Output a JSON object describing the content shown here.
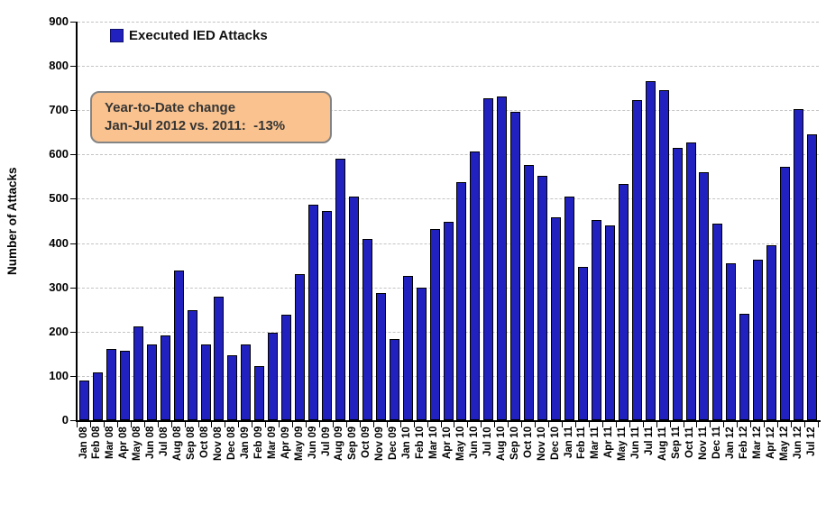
{
  "chart_data": {
    "type": "bar",
    "title": "",
    "xlabel": "",
    "ylabel": "Number of Attacks",
    "ylim": [
      0,
      900
    ],
    "ytick_interval": 100,
    "grid": true,
    "legend_position": "top-left",
    "legend": {
      "label": "Executed IED Attacks",
      "color": "#2121c0"
    },
    "annotation": {
      "line1": "Year-to-Date change",
      "line2": "Jan-Jul 2012 vs. 2011:  -13%",
      "fill_color": "#f9c28e",
      "border_color": "#848484"
    },
    "bar_color": "#2121c0",
    "categories": [
      "Jan 08",
      "Feb 08",
      "Mar 08",
      "Apr 08",
      "May 08",
      "Jun 08",
      "Jul 08",
      "Aug 08",
      "Sep 08",
      "Oct 08",
      "Nov 08",
      "Dec 08",
      "Jan 09",
      "Feb 09",
      "Mar 09",
      "Apr 09",
      "May 09",
      "Jun 09",
      "Jul 09",
      "Aug 09",
      "Sep 09",
      "Oct 09",
      "Nov 09",
      "Dec 09",
      "Jan 10",
      "Feb 10",
      "Mar 10",
      "Apr 10",
      "May 10",
      "Jun 10",
      "Jul 10",
      "Aug 10",
      "Sep 10",
      "Oct 10",
      "Nov 10",
      "Dec 10",
      "Jan 11",
      "Feb 11",
      "Mar 11",
      "Apr 11",
      "May 11",
      "Jun 11",
      "Jul 11",
      "Aug 11",
      "Sep 11",
      "Oct 11",
      "Nov 11",
      "Dec 11",
      "Jan 12",
      "Feb 12",
      "Mar 12",
      "Apr 12",
      "May 12",
      "Jun 12",
      "Jul 12"
    ],
    "values": [
      90,
      107,
      160,
      157,
      211,
      172,
      192,
      337,
      249,
      172,
      278,
      147,
      172,
      123,
      198,
      239,
      330,
      487,
      473,
      590,
      505,
      410,
      288,
      183,
      325,
      300,
      432,
      448,
      537,
      606,
      726,
      731,
      696,
      577,
      552,
      458,
      505,
      347,
      452,
      440,
      533,
      722,
      766,
      745,
      615,
      628,
      559,
      443,
      354,
      240,
      362,
      395,
      572,
      703,
      645
    ]
  }
}
